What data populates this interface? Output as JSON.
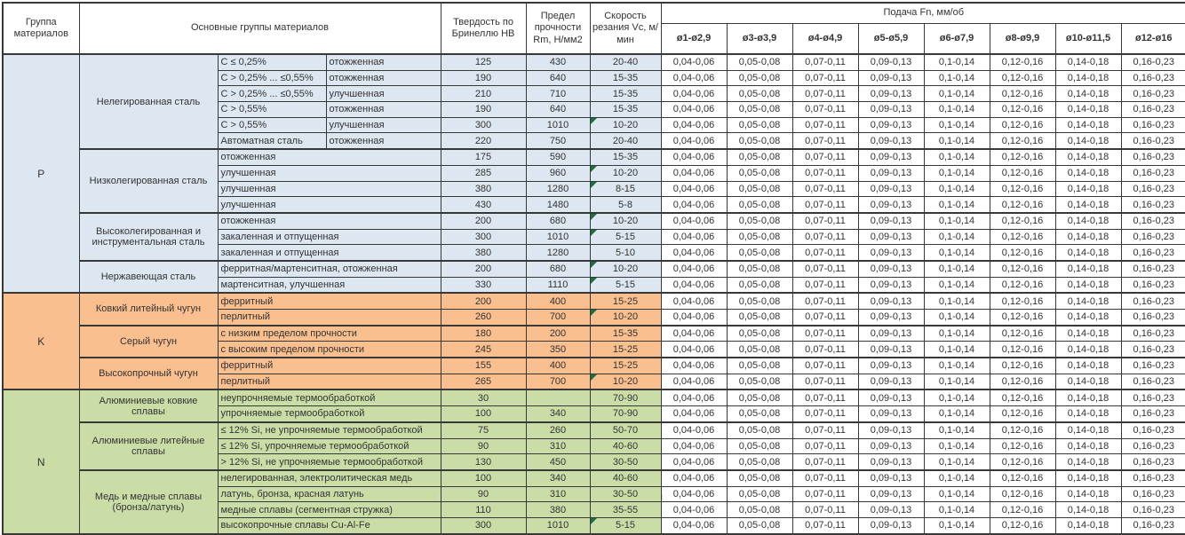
{
  "table": {
    "headers": {
      "group": "Группа материалов",
      "material_groups": "Основные группы материалов",
      "hardness": "Твердость по Бринеллю HB",
      "strength": "Предел прочности Rm, Н/мм2",
      "speed": "Скорость резания Vc, м/мин",
      "feed": "Подача Fn, мм/об",
      "feed_diameters": [
        "ø1-ø2,9",
        "ø3-ø3,9",
        "ø4-ø4,9",
        "ø5-ø5,9",
        "ø6-ø7,9",
        "ø8-ø9,9",
        "ø10-ø11,5",
        "ø12-ø16"
      ]
    },
    "feed_values": [
      "0,04-0,06",
      "0,05-0,08",
      "0,07-0,11",
      "0,09-0,13",
      "0,1-0,14",
      "0,12-0,16",
      "0,14-0,18",
      "0,16-0,23"
    ],
    "colors": {
      "group_p_fill": "#dce7f1",
      "group_k_fill": "#fabf8f",
      "group_n_fill": "#cbdda7",
      "comment_marker": "#1d6f42",
      "border": "#383838"
    },
    "groups": [
      {
        "code": "P",
        "color": "#dce7f1",
        "families": [
          {
            "name": "Нелегированная сталь",
            "rows": [
              {
                "cells": [
                  "C ≤ 0,25%",
                  "отожженная"
                ],
                "hb": "125",
                "rm": "430",
                "vc": "20-40",
                "note": false
              },
              {
                "cells": [
                  "C > 0,25% ... ≤0,55%",
                  "отожженная"
                ],
                "hb": "190",
                "rm": "640",
                "vc": "15-35",
                "note": false
              },
              {
                "cells": [
                  "C > 0,25% ... ≤0,55%",
                  "улучшенная"
                ],
                "hb": "210",
                "rm": "710",
                "vc": "15-35",
                "note": false
              },
              {
                "cells": [
                  "C > 0,55%",
                  "отожженная"
                ],
                "hb": "190",
                "rm": "640",
                "vc": "15-35",
                "note": false
              },
              {
                "cells": [
                  "C > 0,55%",
                  "улучшенная"
                ],
                "hb": "300",
                "rm": "1010",
                "vc": "10-20",
                "note": true
              },
              {
                "cells": [
                  "Автоматная сталь",
                  "отожженная"
                ],
                "hb": "220",
                "rm": "750",
                "vc": "20-40",
                "note": false
              }
            ]
          },
          {
            "name": "Низколегированная сталь",
            "rows": [
              {
                "cells": [
                  "отожженная"
                ],
                "hb": "175",
                "rm": "590",
                "vc": "15-35",
                "note": false
              },
              {
                "cells": [
                  "улучшенная"
                ],
                "hb": "285",
                "rm": "960",
                "vc": "10-20",
                "note": true
              },
              {
                "cells": [
                  "улучшенная"
                ],
                "hb": "380",
                "rm": "1280",
                "vc": "8-15",
                "note": true
              },
              {
                "cells": [
                  "улучшенная"
                ],
                "hb": "430",
                "rm": "1480",
                "vc": "5-8",
                "note": false
              }
            ]
          },
          {
            "name": "Высоколегированная и инструментальная сталь",
            "rows": [
              {
                "cells": [
                  "отожженная"
                ],
                "hb": "200",
                "rm": "680",
                "vc": "10-20",
                "note": true
              },
              {
                "cells": [
                  "закаленная и отпущенная"
                ],
                "hb": "300",
                "rm": "1010",
                "vc": "5-15",
                "note": true
              },
              {
                "cells": [
                  "закаленная и отпущенная"
                ],
                "hb": "380",
                "rm": "1280",
                "vc": "5-10",
                "note": false
              }
            ]
          },
          {
            "name": "Нержавеющая сталь",
            "rows": [
              {
                "cells": [
                  "ферритная/мартенситная, отожженная"
                ],
                "hb": "200",
                "rm": "680",
                "vc": "10-20",
                "note": true
              },
              {
                "cells": [
                  "мартенситная, улучшенная"
                ],
                "hb": "330",
                "rm": "1110",
                "vc": "5-15",
                "note": true
              }
            ]
          }
        ]
      },
      {
        "code": "K",
        "color": "#fabf8f",
        "families": [
          {
            "name": "Ковкий литейный чугун",
            "rows": [
              {
                "cells": [
                  "ферритный"
                ],
                "hb": "200",
                "rm": "400",
                "vc": "15-25",
                "note": false
              },
              {
                "cells": [
                  "перлитный"
                ],
                "hb": "260",
                "rm": "700",
                "vc": "10-20",
                "note": true
              }
            ]
          },
          {
            "name": "Серый чугун",
            "rows": [
              {
                "cells": [
                  "с низким пределом прочности"
                ],
                "hb": "180",
                "rm": "200",
                "vc": "15-35",
                "note": false
              },
              {
                "cells": [
                  "с высоким пределом прочности"
                ],
                "hb": "245",
                "rm": "350",
                "vc": "15-25",
                "note": false
              }
            ]
          },
          {
            "name": "Высокопрочный чугун",
            "rows": [
              {
                "cells": [
                  "ферритный"
                ],
                "hb": "155",
                "rm": "400",
                "vc": "15-25",
                "note": false
              },
              {
                "cells": [
                  "перлитный"
                ],
                "hb": "265",
                "rm": "700",
                "vc": "10-20",
                "note": true
              }
            ]
          }
        ]
      },
      {
        "code": "N",
        "color": "#cbdda7",
        "families": [
          {
            "name": "Алюминиевые ковкие сплавы",
            "rows": [
              {
                "cells": [
                  "неупрочняемые термообработкой"
                ],
                "hb": "30",
                "rm": "",
                "vc": "70-90",
                "note": false
              },
              {
                "cells": [
                  "упрочняемые термообработкой"
                ],
                "hb": "100",
                "rm": "340",
                "vc": "70-90",
                "note": false
              }
            ]
          },
          {
            "name": "Алюминиевые литейные сплавы",
            "rows": [
              {
                "cells": [
                  "≤ 12% Si, не упрочняемые термообработкой"
                ],
                "hb": "75",
                "rm": "260",
                "vc": "50-70",
                "note": false
              },
              {
                "cells": [
                  "≤ 12% Si, упрочняемые термообработкой"
                ],
                "hb": "90",
                "rm": "310",
                "vc": "40-60",
                "note": false
              },
              {
                "cells": [
                  "> 12% Si, не упрочняемые термообработкой"
                ],
                "hb": "130",
                "rm": "450",
                "vc": "30-50",
                "note": false
              }
            ]
          },
          {
            "name": "Медь и медные сплавы (бронза/латунь)",
            "rows": [
              {
                "cells": [
                  "нелегированная, электролитическая медь"
                ],
                "hb": "100",
                "rm": "340",
                "vc": "40-60",
                "note": false
              },
              {
                "cells": [
                  "латунь, бронза, красная латунь"
                ],
                "hb": "90",
                "rm": "310",
                "vc": "30-50",
                "note": false
              },
              {
                "cells": [
                  "медные сплавы (сегментная стружка)"
                ],
                "hb": "110",
                "rm": "380",
                "vc": "35-55",
                "note": false
              },
              {
                "cells": [
                  "высокопрочные сплавы Cu-Al-Fe"
                ],
                "hb": "300",
                "rm": "1010",
                "vc": "5-15",
                "note": true
              }
            ]
          }
        ]
      }
    ]
  }
}
